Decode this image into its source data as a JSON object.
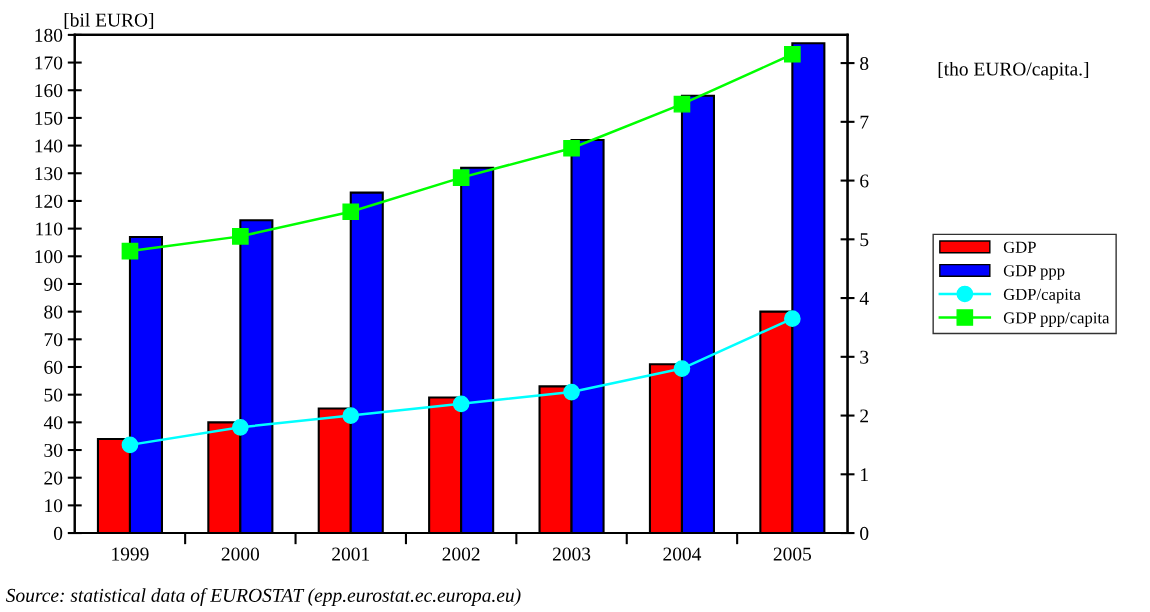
{
  "chart_data": {
    "type": "bar",
    "ylabel": "[bil EURO]",
    "y2label": "[tho EURO/capita.]",
    "categories": [
      "1999",
      "2000",
      "2001",
      "2002",
      "2003",
      "2004",
      "2005"
    ],
    "series": [
      {
        "name": "GDP",
        "color": "#ff0000",
        "values": [
          34,
          40,
          45,
          49,
          53,
          61,
          80
        ]
      },
      {
        "name": "GDP ppp",
        "color": "#0000ff",
        "values": [
          107,
          113,
          123,
          132,
          142,
          158,
          177
        ]
      },
      {
        "name": "GDP/capita",
        "type": "line",
        "axis": "y2",
        "marker": "circle",
        "color": "#00ffff",
        "values": [
          1.5,
          1.8,
          2.0,
          2.2,
          2.4,
          2.8,
          3.65
        ]
      },
      {
        "name": "GDP ppp/capita",
        "type": "line",
        "axis": "y2",
        "marker": "square",
        "color": "#00ff00",
        "values": [
          4.8,
          5.05,
          5.47,
          6.05,
          6.55,
          7.3,
          8.15
        ]
      }
    ],
    "ylim": [
      0,
      180
    ],
    "yticks": [
      0,
      10,
      20,
      30,
      40,
      50,
      60,
      70,
      80,
      90,
      100,
      110,
      120,
      130,
      140,
      150,
      160,
      170,
      180
    ],
    "y2lim": [
      0,
      8.48
    ],
    "y2ticks": [
      0,
      1,
      2,
      3,
      4,
      5,
      6,
      7,
      8
    ],
    "grid": false,
    "legend": "right",
    "annotations": [
      "Source: statistical data of EUROSTAT (epp.eurostat.ec.europa.eu)"
    ]
  }
}
